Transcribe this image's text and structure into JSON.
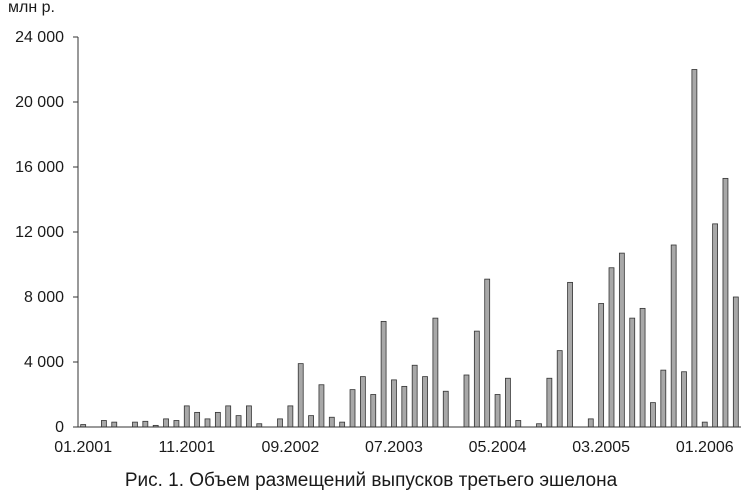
{
  "caption": "Рис. 1. Объем размещений выпусков третьего эшелона",
  "chart_data": {
    "type": "bar",
    "unit_label": "млн р.",
    "ylim": [
      0,
      24000
    ],
    "y_ticks": [
      0,
      4000,
      8000,
      12000,
      16000,
      20000,
      24000
    ],
    "y_tick_labels": [
      "0",
      "4 000",
      "8 000",
      "12 000",
      "16 000",
      "20 000",
      "24 000"
    ],
    "x_tick_labels": [
      "01.2001",
      "11.2001",
      "09.2002",
      "07.2003",
      "05.2004",
      "03.2005",
      "01.2006"
    ],
    "x_tick_every": 10,
    "grid": false,
    "bar_color": "#a8a8a8",
    "bar_stroke": "#333333",
    "values": [
      150,
      0,
      400,
      300,
      0,
      300,
      350,
      100,
      500,
      400,
      1300,
      900,
      500,
      900,
      1300,
      700,
      1300,
      200,
      0,
      500,
      1300,
      3900,
      700,
      2600,
      600,
      300,
      2300,
      3100,
      2000,
      6500,
      2900,
      2500,
      3800,
      3100,
      6700,
      2200,
      0,
      3200,
      5900,
      9100,
      2000,
      3000,
      400,
      0,
      200,
      3000,
      4700,
      8900,
      0,
      500,
      7600,
      9800,
      10700,
      6700,
      7300,
      1500,
      3500,
      11200,
      3400,
      22000,
      300,
      12500,
      15300,
      8000
    ]
  }
}
